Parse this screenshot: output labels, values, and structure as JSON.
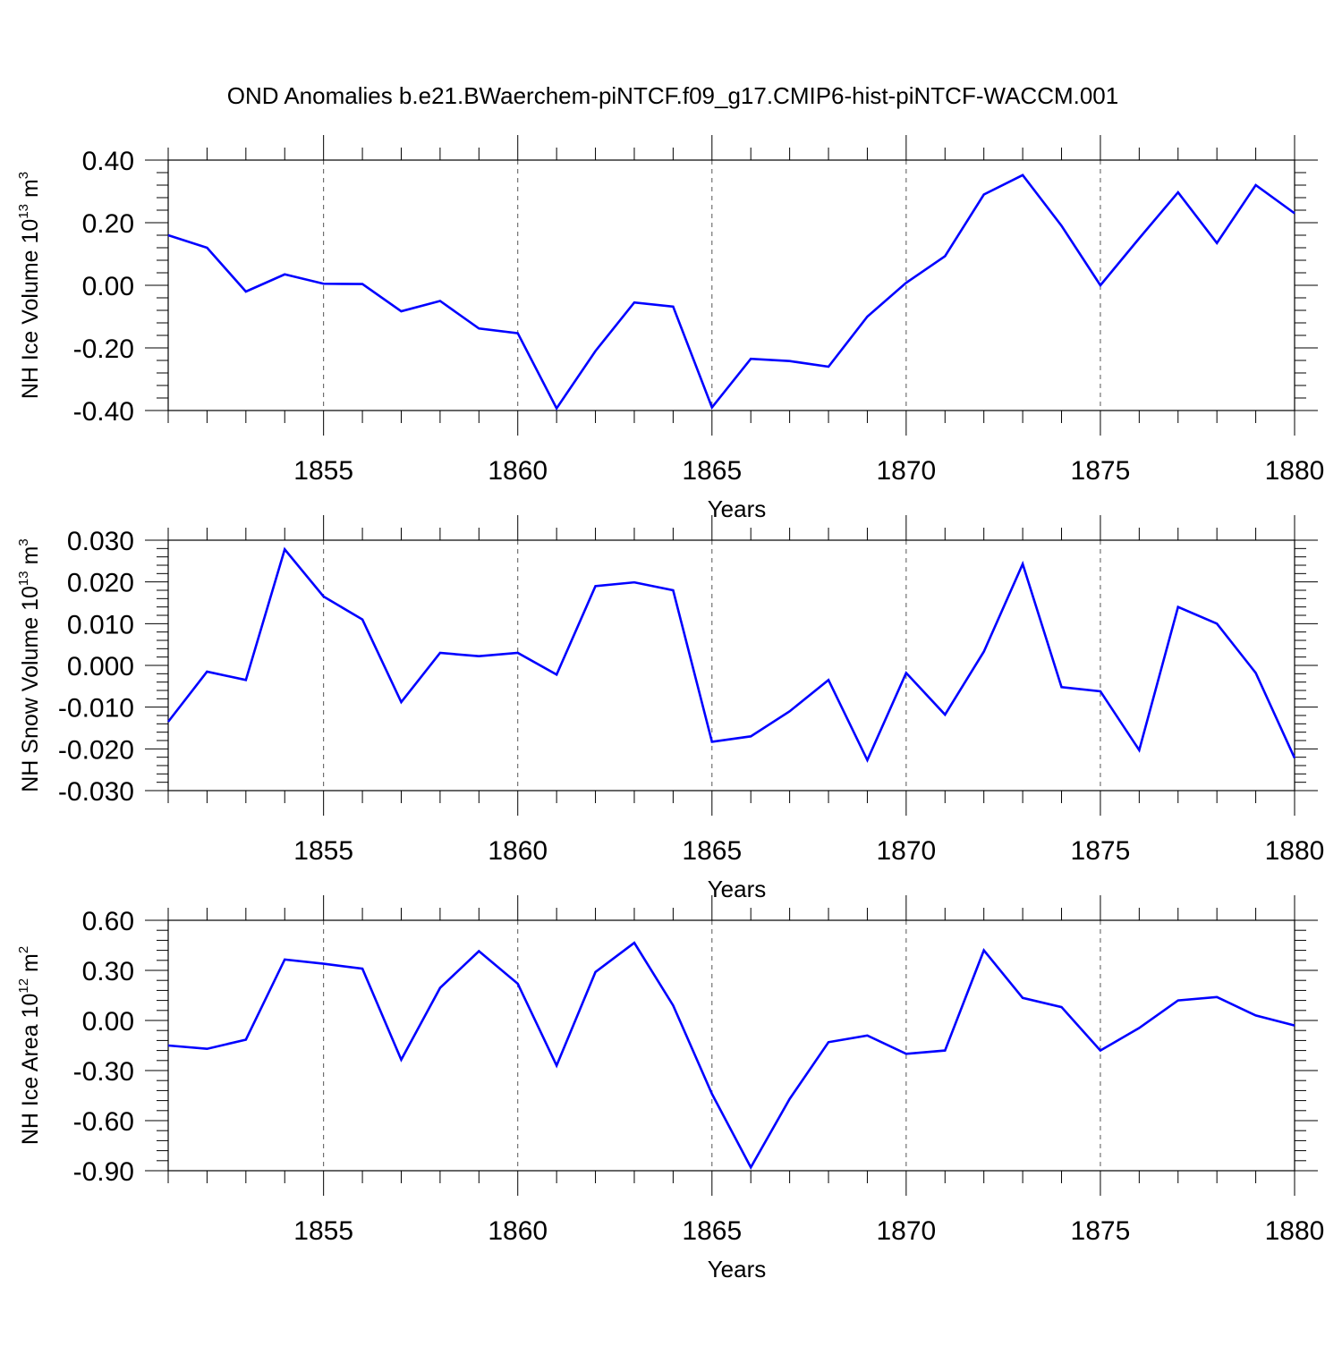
{
  "title": "OND Anomalies b.e21.BWaerchem-piNTCF.f09_g17.CMIP6-hist-piNTCF-WACCM.001",
  "colors": {
    "line": "#0000ff",
    "axis": "#000000",
    "grid": "#555555"
  },
  "chart_data": [
    {
      "type": "line",
      "ylabel_main": "NH Ice Volume 10",
      "ylabel_exp": "13",
      "ylabel_unit": " m",
      "ylabel_unit_exp": "3",
      "xlabel": "Years",
      "xlim": [
        1851,
        1880
      ],
      "ylim": [
        -0.4,
        0.4
      ],
      "yticks": [
        -0.4,
        -0.2,
        0.0,
        0.2,
        0.4
      ],
      "ytick_labels": [
        "-0.40",
        "-0.20",
        "0.00",
        "0.20",
        "0.40"
      ],
      "xticks": [
        1855,
        1860,
        1865,
        1870,
        1875,
        1880
      ],
      "xtick_labels": [
        "1855",
        "1860",
        "1865",
        "1870",
        "1875",
        "1880"
      ],
      "x": [
        1851,
        1852,
        1853,
        1854,
        1855,
        1856,
        1857,
        1858,
        1859,
        1860,
        1861,
        1862,
        1863,
        1864,
        1865,
        1866,
        1867,
        1868,
        1869,
        1870,
        1871,
        1872,
        1873,
        1874,
        1875,
        1876,
        1877,
        1878,
        1879,
        1880
      ],
      "values": [
        0.16,
        0.12,
        -0.02,
        0.035,
        0.005,
        0.004,
        -0.083,
        -0.05,
        -0.138,
        -0.153,
        -0.393,
        -0.21,
        -0.055,
        -0.068,
        -0.39,
        -0.235,
        -0.242,
        -0.26,
        -0.1,
        0.008,
        0.093,
        0.29,
        0.352,
        0.19,
        0.0,
        0.15,
        0.297,
        0.135,
        0.32,
        0.23
      ]
    },
    {
      "type": "line",
      "ylabel_main": "NH Snow Volume 10",
      "ylabel_exp": "13",
      "ylabel_unit": " m",
      "ylabel_unit_exp": "3",
      "xlabel": "Years",
      "xlim": [
        1851,
        1880
      ],
      "ylim": [
        -0.03,
        0.03
      ],
      "yticks": [
        -0.03,
        -0.02,
        -0.01,
        0.0,
        0.01,
        0.02,
        0.03
      ],
      "ytick_labels": [
        "-0.030",
        "-0.020",
        "-0.010",
        "0.000",
        "0.010",
        "0.020",
        "0.030"
      ],
      "xticks": [
        1855,
        1860,
        1865,
        1870,
        1875,
        1880
      ],
      "xtick_labels": [
        "1855",
        "1860",
        "1865",
        "1870",
        "1875",
        "1880"
      ],
      "x": [
        1851,
        1852,
        1853,
        1854,
        1855,
        1856,
        1857,
        1858,
        1859,
        1860,
        1861,
        1862,
        1863,
        1864,
        1865,
        1866,
        1867,
        1868,
        1869,
        1870,
        1871,
        1872,
        1873,
        1874,
        1875,
        1876,
        1877,
        1878,
        1879,
        1880
      ],
      "values": [
        -0.0135,
        -0.0015,
        -0.0035,
        0.0278,
        0.0165,
        0.011,
        -0.0088,
        0.003,
        0.0022,
        0.003,
        -0.0022,
        0.019,
        0.0199,
        0.018,
        -0.0183,
        -0.017,
        -0.011,
        -0.0035,
        -0.0227,
        -0.0018,
        -0.0118,
        0.0033,
        0.0243,
        -0.0052,
        -0.0062,
        -0.0203,
        0.014,
        0.01,
        -0.0018,
        -0.0222
      ]
    },
    {
      "type": "line",
      "ylabel_main": "NH Ice Area 10",
      "ylabel_exp": "12",
      "ylabel_unit": " m",
      "ylabel_unit_exp": "2",
      "xlabel": "Years",
      "xlim": [
        1851,
        1880
      ],
      "ylim": [
        -0.9,
        0.6
      ],
      "yticks": [
        -0.9,
        -0.6,
        -0.3,
        0.0,
        0.3,
        0.6
      ],
      "ytick_labels": [
        "-0.90",
        "-0.60",
        "-0.30",
        "0.00",
        "0.30",
        "0.60"
      ],
      "xticks": [
        1855,
        1860,
        1865,
        1870,
        1875,
        1880
      ],
      "xtick_labels": [
        "1855",
        "1860",
        "1865",
        "1870",
        "1875",
        "1880"
      ],
      "x": [
        1851,
        1852,
        1853,
        1854,
        1855,
        1856,
        1857,
        1858,
        1859,
        1860,
        1861,
        1862,
        1863,
        1864,
        1865,
        1866,
        1867,
        1868,
        1869,
        1870,
        1871,
        1872,
        1873,
        1874,
        1875,
        1876,
        1877,
        1878,
        1879,
        1880
      ],
      "values": [
        -0.15,
        -0.17,
        -0.115,
        0.365,
        0.34,
        0.31,
        -0.235,
        0.195,
        0.415,
        0.22,
        -0.27,
        0.29,
        0.465,
        0.09,
        -0.44,
        -0.88,
        -0.47,
        -0.13,
        -0.09,
        -0.2,
        -0.18,
        0.42,
        0.135,
        0.08,
        -0.18,
        -0.045,
        0.12,
        0.14,
        0.03,
        -0.03
      ]
    }
  ]
}
